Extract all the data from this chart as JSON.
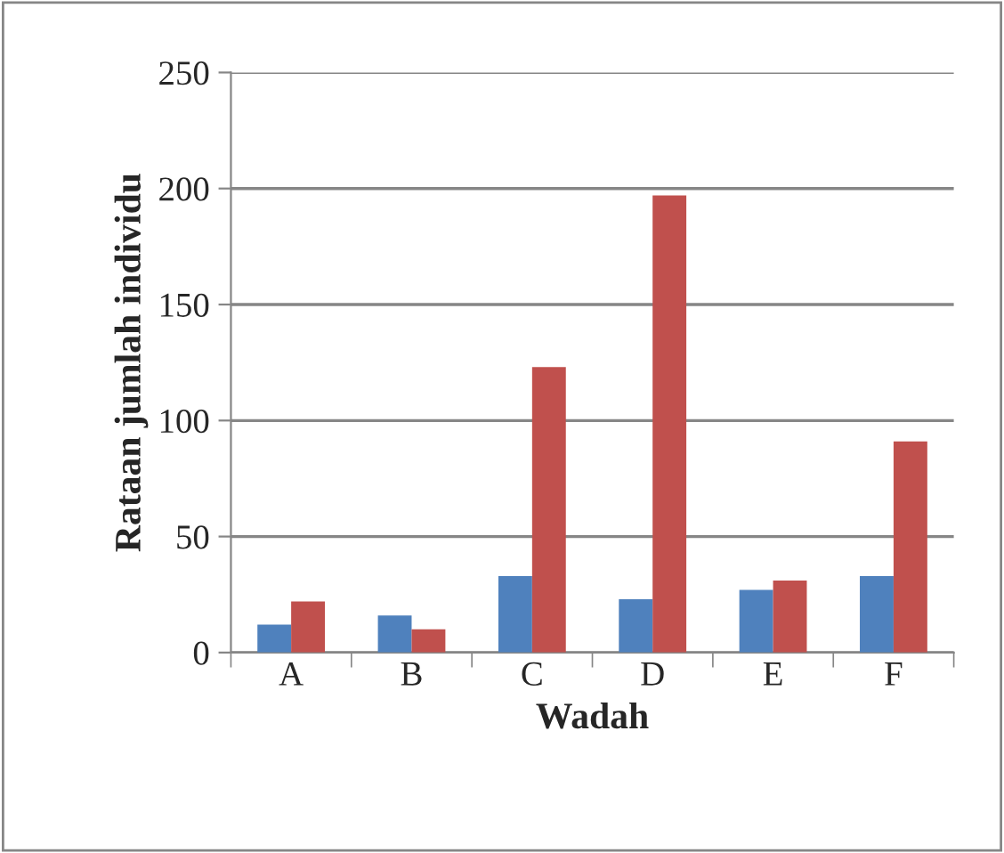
{
  "chart_data": {
    "type": "bar",
    "xlabel": "Wadah",
    "ylabel": "Rataan jumlah individu",
    "categories": [
      "A",
      "B",
      "C",
      "D",
      "E",
      "F"
    ],
    "series": [
      {
        "color": "#4f81bd",
        "values": [
          12,
          16,
          33,
          23,
          27,
          33
        ]
      },
      {
        "color": "#c0504d",
        "values": [
          22,
          10,
          123,
          197,
          31,
          91
        ]
      }
    ],
    "ylim": [
      0,
      250
    ],
    "yticks": [
      0,
      50,
      100,
      150,
      200,
      250
    ],
    "grid": "y"
  }
}
